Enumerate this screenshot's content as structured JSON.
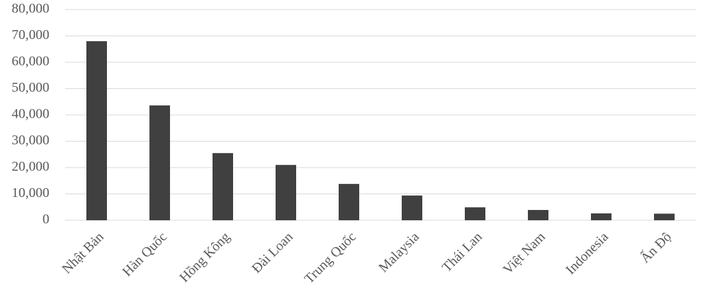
{
  "chart_data": {
    "type": "bar",
    "categories": [
      "Nhật Bản",
      "Hàn Quốc",
      "Hồng Kông",
      "Đài Loan",
      "Trung Quốc",
      "Malaysia",
      "Thái Lan",
      "Việt Nam",
      "Indonesia",
      "Ấn Độ"
    ],
    "values": [
      68000,
      43600,
      25500,
      21000,
      13800,
      9400,
      4900,
      3900,
      2600,
      2500
    ],
    "color": "#404040",
    "ylim": [
      0,
      80000
    ],
    "yticks": [
      0,
      {
        "value": 10000,
        "label": "10,000"
      },
      {
        "value": 20000,
        "label": "20,000"
      },
      {
        "value": 30000,
        "label": "30,000"
      },
      {
        "value": 40000,
        "label": "40,000"
      },
      {
        "value": 50000,
        "label": "50,000"
      },
      {
        "value": 60000,
        "label": "60,000"
      },
      {
        "value": 70000,
        "label": "70,000"
      },
      {
        "value": 80000,
        "label": "80,000"
      }
    ],
    "grid": true
  }
}
